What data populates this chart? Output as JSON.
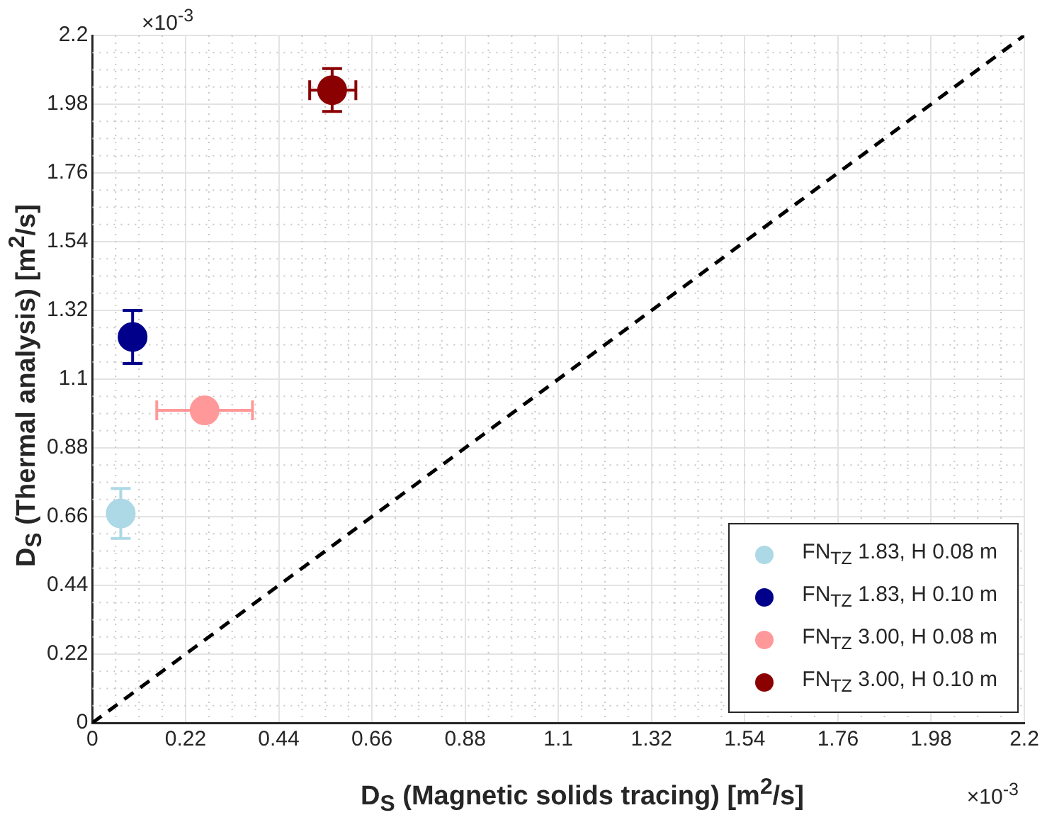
{
  "chart_data": {
    "type": "scatter",
    "xlabel": "D$_{S}$ (Magnetic solids tracing) [m$^{2}$/s]",
    "ylabel": "D$_{S}$ (Thermal analysis) [m$^{2}$/s]",
    "xlim": [
      0,
      2.2
    ],
    "ylim": [
      0,
      2.2
    ],
    "xticks": [
      0,
      0.22,
      0.44,
      0.66,
      0.88,
      1.1,
      1.32,
      1.54,
      1.76,
      1.98,
      2.2
    ],
    "yticks": [
      0,
      0.22,
      0.44,
      0.66,
      0.88,
      1.1,
      1.32,
      1.54,
      1.76,
      1.98,
      2.2
    ],
    "grid": true,
    "legend": "bottom right",
    "marker": "circle",
    "annotations": [
      "×10$^{-3}$",
      "×10$^{-3}$"
    ],
    "series": [
      {
        "name": "FN$_{TZ}$ 1.83, H 0.08 m",
        "color": "#add8e6",
        "x": [
          0.067
        ],
        "values": [
          0.67
        ],
        "errors": [
          [
            0.59,
            0.75
          ]
        ]
      },
      {
        "name": "FN$_{TZ}$ 1.83, H 0.10 m",
        "color": "#00008b",
        "x": [
          0.095
        ],
        "values": [
          1.235
        ],
        "errors": [
          [
            1.15,
            1.32
          ]
        ]
      },
      {
        "name": "FN$_{TZ}$ 3.00, H 0.08 m",
        "color": "#ff9999",
        "x": [
          0.265
        ],
        "values": [
          1.0
        ],
        "xerrors": [
          [
            0.152,
            0.378
          ]
        ]
      },
      {
        "name": "FN$_{TZ}$ 3.00, H 0.10 m",
        "color": "#8b0000",
        "x": [
          0.566
        ],
        "values": [
          2.025
        ],
        "errors": [
          [
            1.957,
            2.094
          ]
        ],
        "xerrors": [
          [
            0.513,
            0.622
          ]
        ]
      },
      {
        "type": "line",
        "color": "#000000",
        "line_style": "dashed",
        "marker": "none",
        "x": [
          0,
          2.2
        ],
        "values": [
          0,
          2.2
        ]
      }
    ]
  }
}
